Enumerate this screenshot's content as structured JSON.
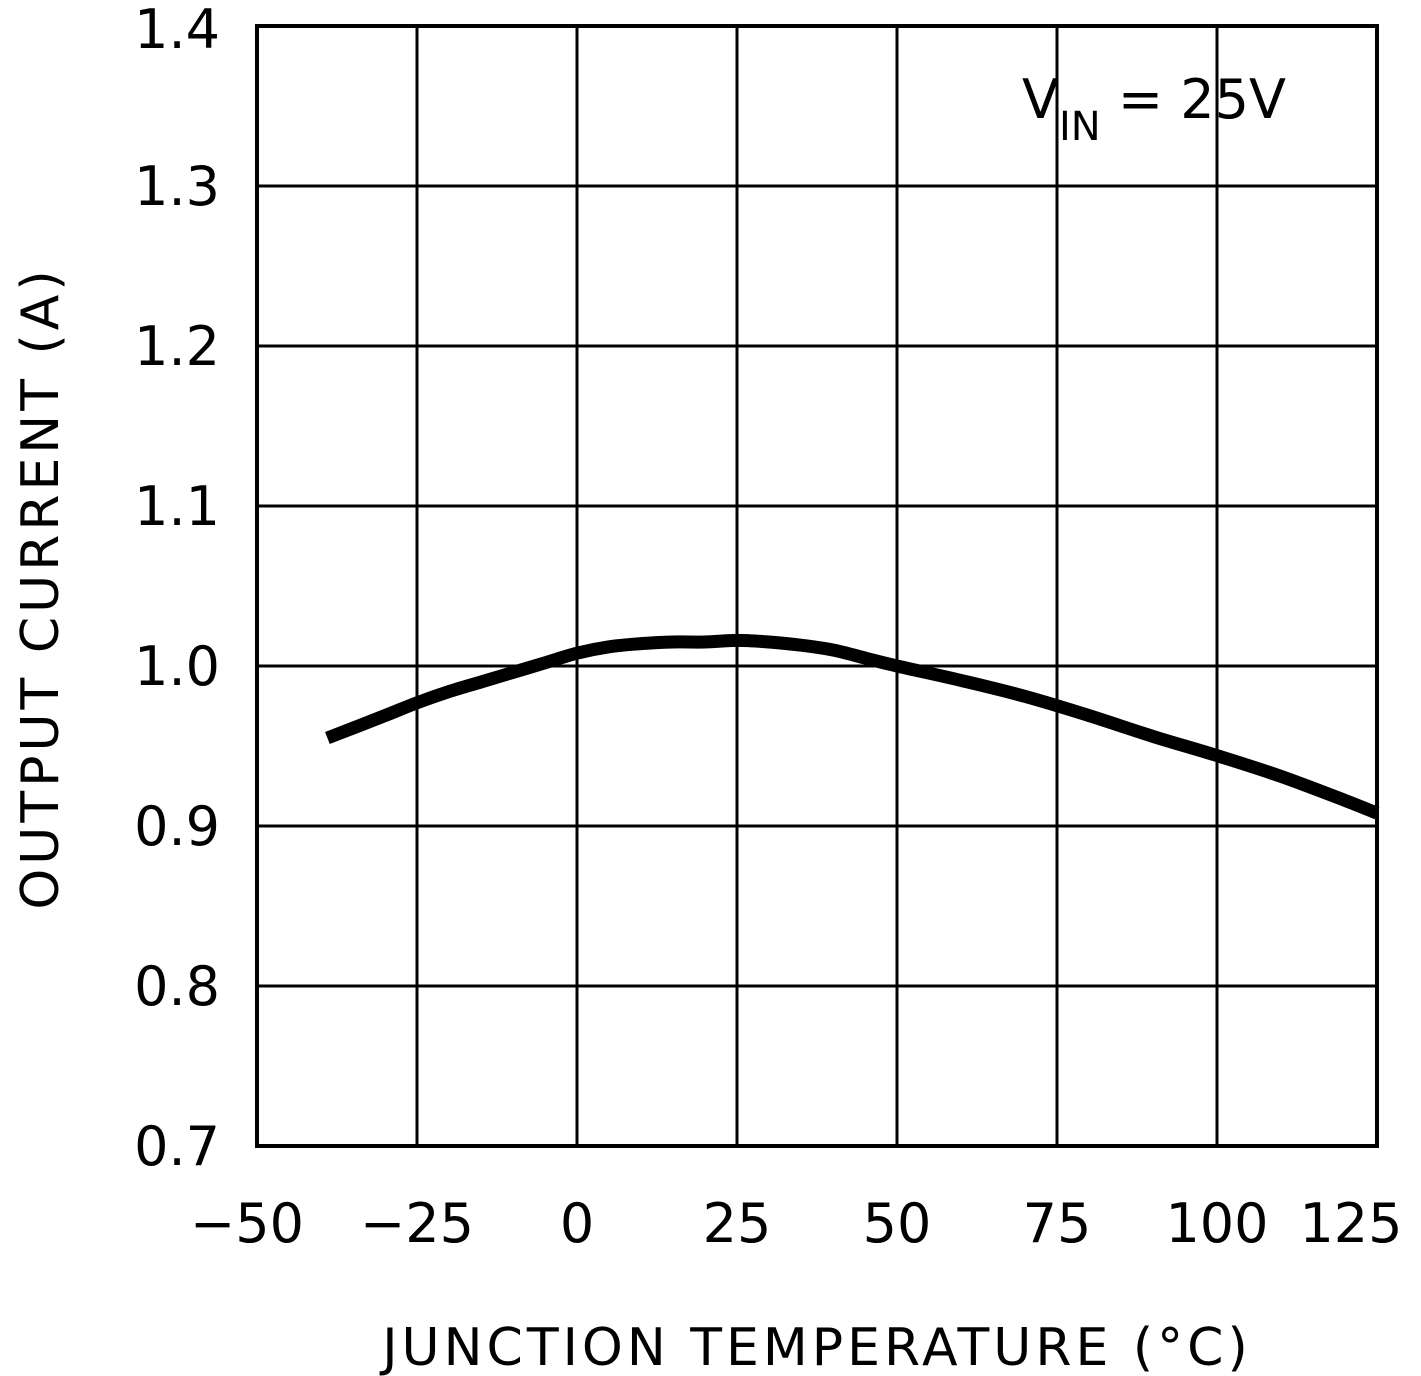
{
  "chart_data": {
    "type": "line",
    "title": "",
    "xlabel": "JUNCTION TEMPERATURE (°C)",
    "ylabel": "OUTPUT CURRENT (A)",
    "xlim": [
      -50,
      125
    ],
    "ylim": [
      0.7,
      1.4
    ],
    "xticks": [
      -50,
      -25,
      0,
      25,
      50,
      75,
      100,
      125
    ],
    "yticks": [
      0.7,
      0.8,
      0.9,
      1.0,
      1.1,
      1.2,
      1.3,
      1.4
    ],
    "xtick_labels": [
      "−50",
      "−25",
      "0",
      "25",
      "50",
      "75",
      "100",
      "125"
    ],
    "ytick_labels": [
      "0.7",
      "0.8",
      "0.9",
      "1.0",
      "1.1",
      "1.2",
      "1.3",
      "1.4"
    ],
    "grid": true,
    "annotation": {
      "main": "V",
      "sub": "IN",
      "rest": " = 25V"
    },
    "series": [
      {
        "x": [
          -39,
          -30,
          -25,
          -20,
          -15,
          -10,
          -5,
          0,
          5,
          10,
          15,
          20,
          25,
          30,
          35,
          40,
          45,
          50,
          60,
          70,
          80,
          90,
          100,
          110,
          120,
          125
        ],
        "y": [
          0.955,
          0.969,
          0.977,
          0.984,
          0.99,
          0.996,
          1.002,
          1.008,
          1.012,
          1.014,
          1.015,
          1.015,
          1.016,
          1.015,
          1.013,
          1.01,
          1.005,
          1.0,
          0.991,
          0.981,
          0.969,
          0.956,
          0.944,
          0.931,
          0.916,
          0.908
        ]
      }
    ]
  }
}
